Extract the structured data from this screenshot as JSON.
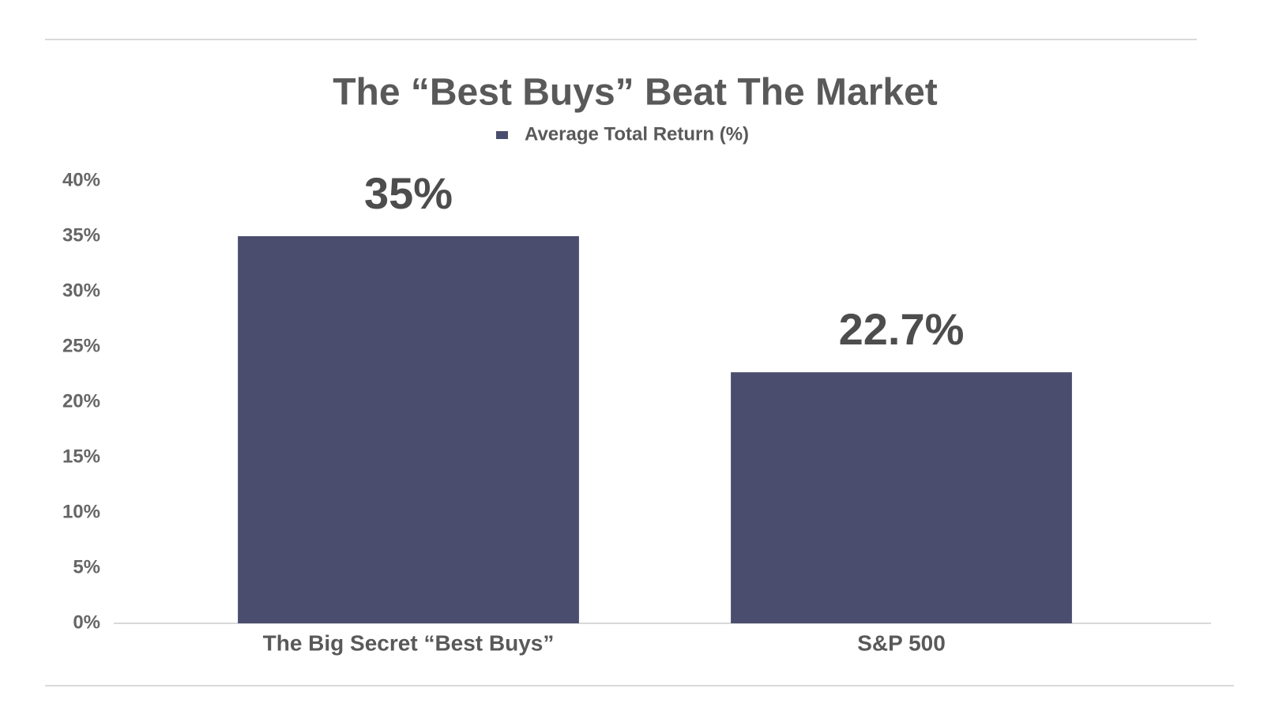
{
  "chart_data": {
    "type": "bar",
    "title": "The “Best Buys” Beat The Market",
    "categories": [
      "The Big Secret “Best Buys”",
      "S&P 500"
    ],
    "series": [
      {
        "name": "Average Total Return (%)",
        "color": "#4a4d6e",
        "values": [
          35,
          22.7
        ],
        "value_labels": [
          "35%",
          "22.7%"
        ]
      }
    ],
    "ylim": [
      0,
      40
    ],
    "yticks": [
      {
        "value": 0,
        "label": "0%"
      },
      {
        "value": 5,
        "label": "5%"
      },
      {
        "value": 10,
        "label": "10%"
      },
      {
        "value": 15,
        "label": "15%"
      },
      {
        "value": 20,
        "label": "20%"
      },
      {
        "value": 25,
        "label": "25%"
      },
      {
        "value": 30,
        "label": "30%"
      },
      {
        "value": 35,
        "label": "35%"
      },
      {
        "value": 40,
        "label": "40%"
      }
    ],
    "grid": false,
    "legend": "top"
  }
}
